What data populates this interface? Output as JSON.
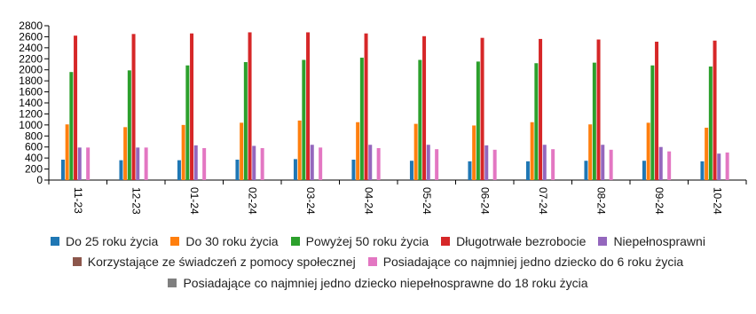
{
  "chart_data": {
    "type": "bar",
    "categories": [
      "11-23",
      "12-23",
      "01-24",
      "02-24",
      "03-24",
      "04-24",
      "05-24",
      "06-24",
      "07-24",
      "08-24",
      "09-24",
      "10-24"
    ],
    "series": [
      {
        "name": "Do 25 roku życia",
        "color": "#1f77b4",
        "values": [
          370,
          360,
          360,
          370,
          380,
          370,
          350,
          340,
          340,
          350,
          350,
          340
        ]
      },
      {
        "name": "Do 30 roku życia",
        "color": "#ff7f0e",
        "values": [
          1010,
          960,
          1000,
          1040,
          1080,
          1050,
          1020,
          990,
          1050,
          1010,
          1040,
          950
        ]
      },
      {
        "name": "Powyżej 50 roku życia",
        "color": "#2ca02c",
        "values": [
          1960,
          1990,
          2080,
          2140,
          2180,
          2220,
          2180,
          2150,
          2120,
          2130,
          2080,
          2060
        ]
      },
      {
        "name": "Długotrwałe bezrobocie",
        "color": "#d62728",
        "values": [
          2620,
          2650,
          2660,
          2680,
          2680,
          2660,
          2610,
          2580,
          2560,
          2550,
          2510,
          2530
        ]
      },
      {
        "name": "Niepełnosprawni",
        "color": "#9467bd",
        "values": [
          590,
          590,
          630,
          620,
          640,
          640,
          640,
          630,
          640,
          640,
          600,
          480
        ]
      },
      {
        "name": "Korzystające ze świadczeń z pomocy społecznej",
        "color": "#8c564b",
        "values": [
          0,
          0,
          0,
          0,
          0,
          0,
          0,
          0,
          0,
          0,
          0,
          0
        ]
      },
      {
        "name": "Posiadające co najmniej jedno dziecko do 6 roku życia",
        "color": "#e377c2",
        "values": [
          590,
          590,
          580,
          580,
          590,
          580,
          560,
          550,
          560,
          550,
          520,
          500
        ]
      },
      {
        "name": "Posiadające co najmniej jedno dziecko niepełnosprawne do 18 roku życia",
        "color": "#7f7f7f",
        "values": [
          0,
          0,
          0,
          0,
          0,
          0,
          0,
          0,
          0,
          0,
          0,
          0
        ]
      }
    ],
    "ylim": [
      0,
      2800
    ],
    "yticks": [
      0,
      200,
      400,
      600,
      800,
      1000,
      1200,
      1400,
      1600,
      1800,
      2000,
      2200,
      2400,
      2600,
      2800
    ]
  }
}
